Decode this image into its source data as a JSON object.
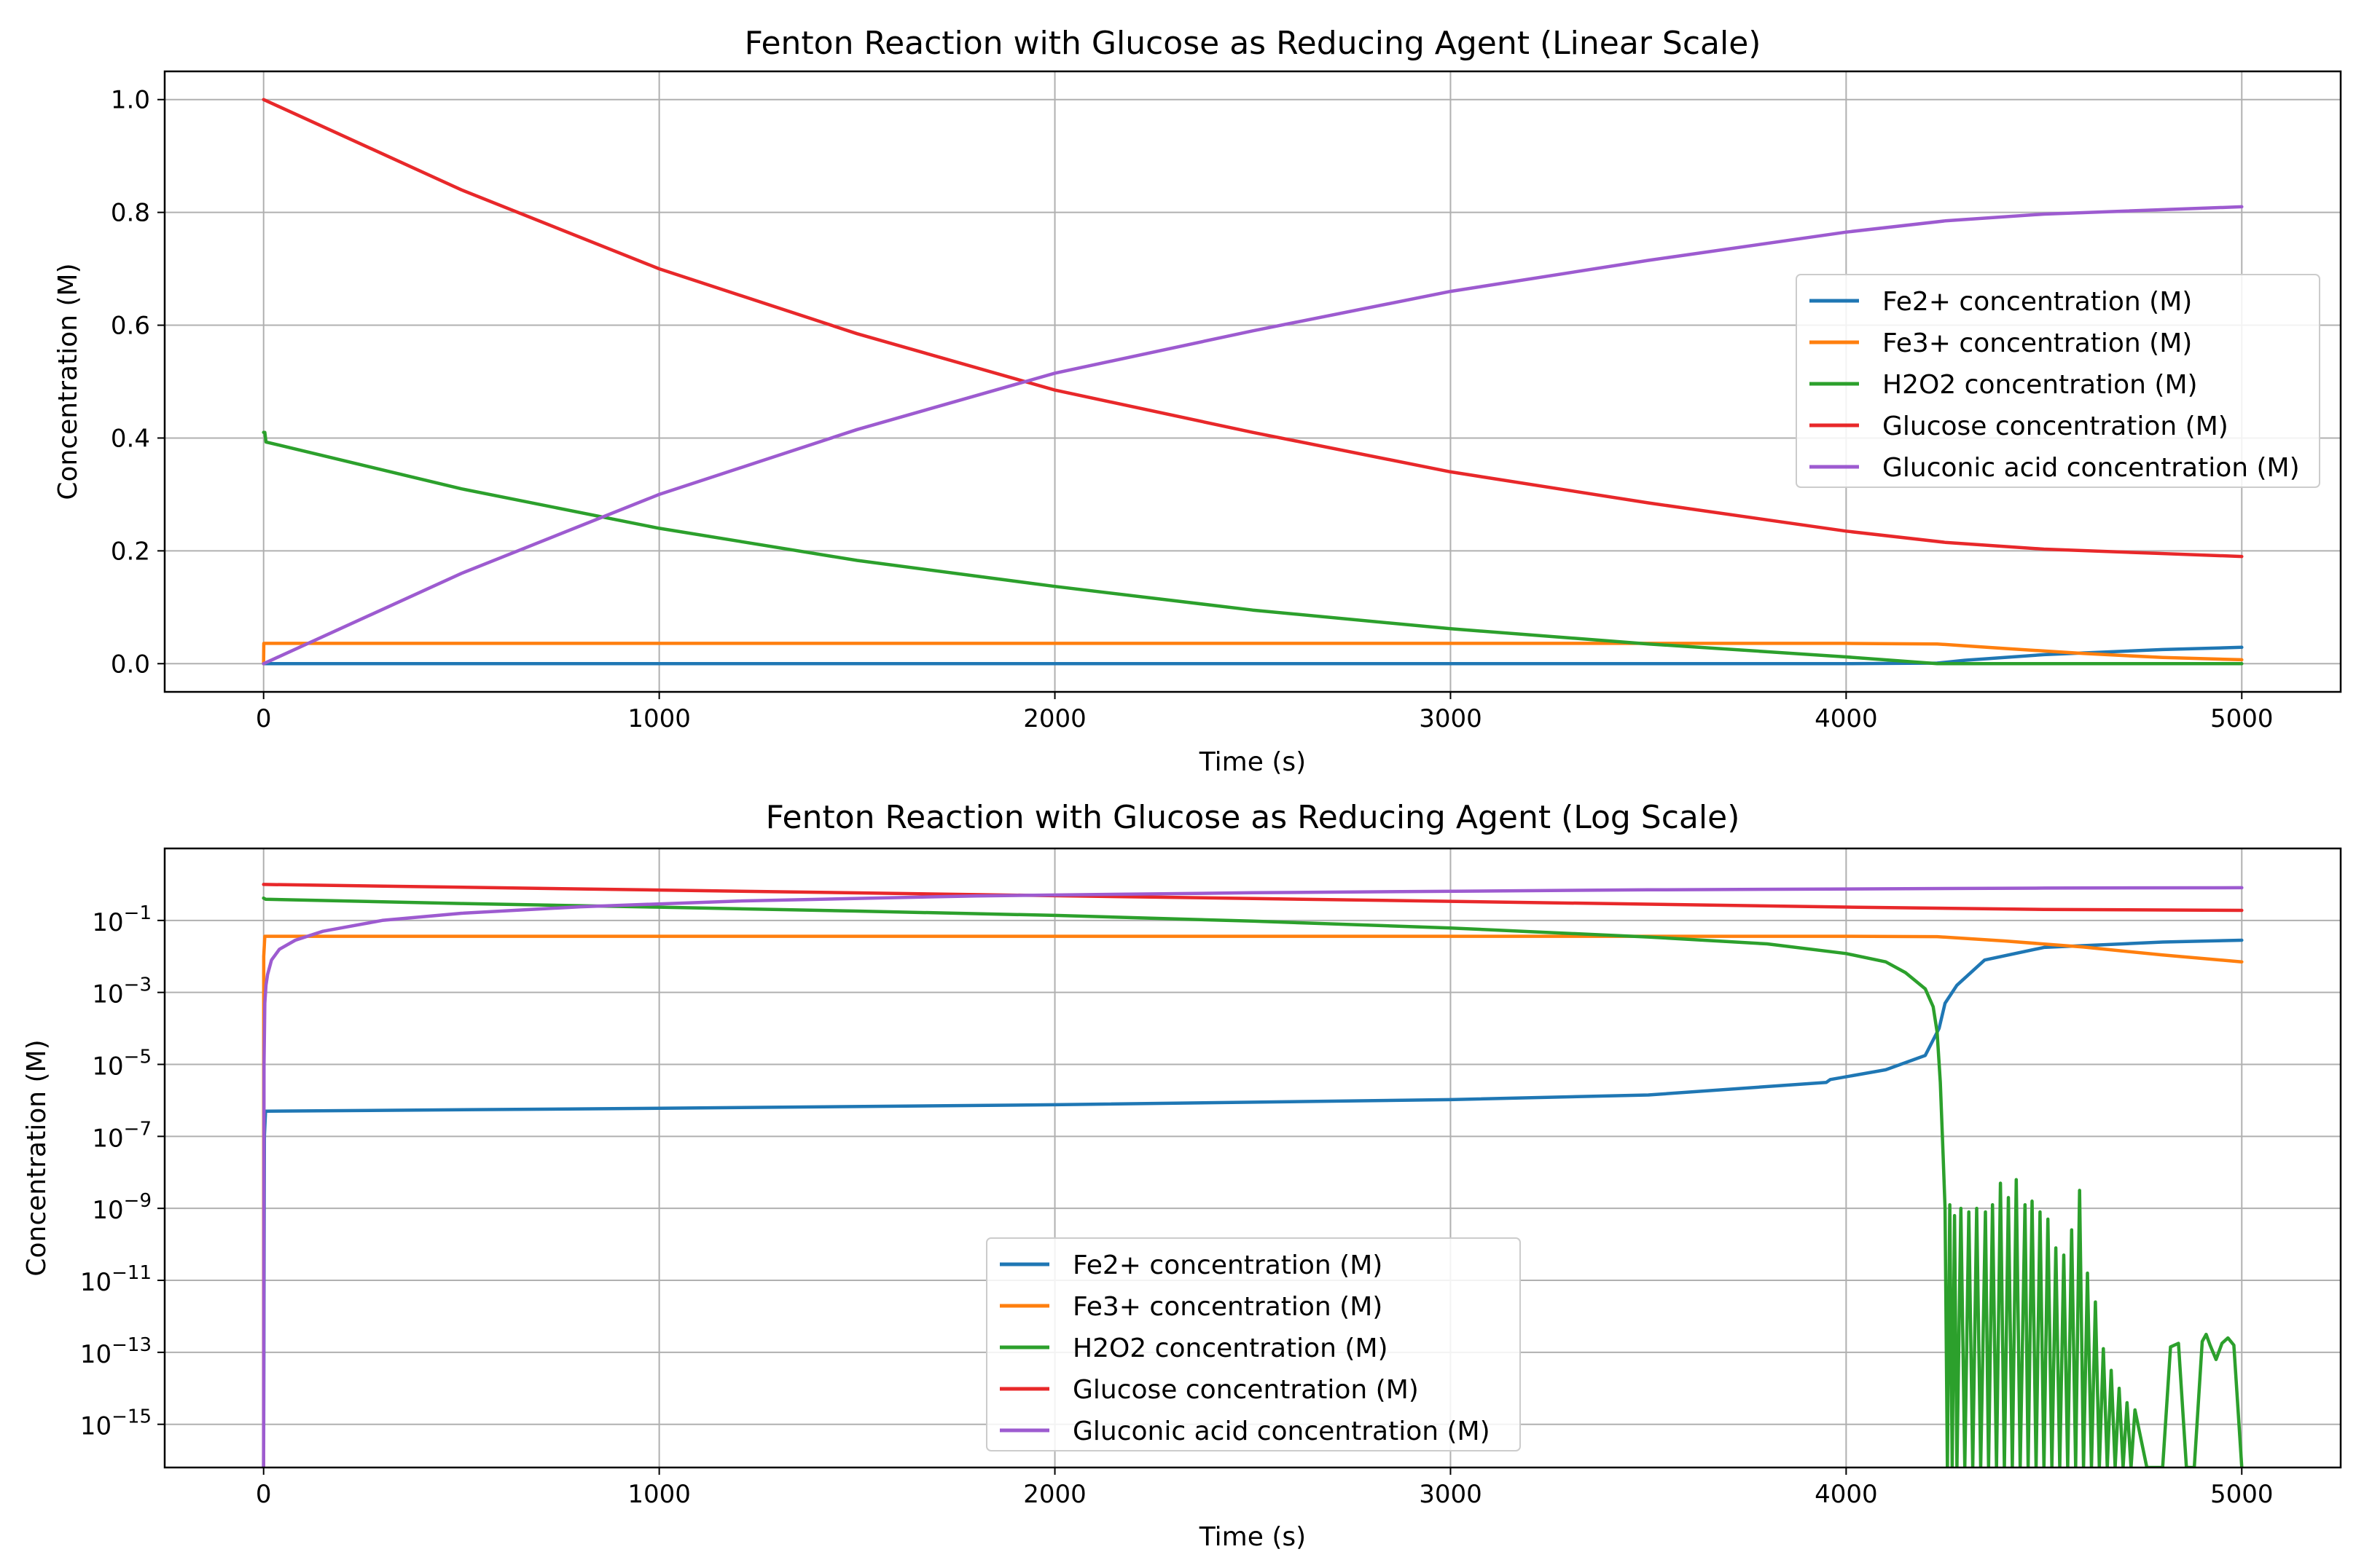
{
  "chart_data": [
    {
      "type": "line",
      "scale": "linear",
      "title": "Fenton Reaction with Glucose as Reducing Agent (Linear Scale)",
      "xlabel": "Time (s)",
      "ylabel": "Concentration (M)",
      "xlim": [
        -250,
        5250
      ],
      "ylim": [
        -0.05,
        1.05
      ],
      "xticks": [
        0,
        1000,
        2000,
        3000,
        4000,
        5000
      ],
      "xtick_labels": [
        "0",
        "1000",
        "2000",
        "3000",
        "4000",
        "5000"
      ],
      "yticks": [
        0.0,
        0.2,
        0.4,
        0.6,
        0.8,
        1.0
      ],
      "ytick_labels": [
        "0.0",
        "0.2",
        "0.4",
        "0.6",
        "0.8",
        "1.0"
      ],
      "grid": true,
      "legend_position": "center-right",
      "series": [
        {
          "name": "Fe2+ concentration (M)",
          "color": "#1f77b4",
          "x": [
            0,
            1000,
            2000,
            3000,
            4000,
            4230,
            4300,
            4500,
            4800,
            5000
          ],
          "y": [
            0.0,
            0.0,
            0.0,
            0.0,
            0.0,
            0.001,
            0.006,
            0.016,
            0.025,
            0.029
          ]
        },
        {
          "name": "Fe3+ concentration (M)",
          "color": "#ff7f0e",
          "x": [
            0,
            0.5,
            1000,
            2000,
            3000,
            4000,
            4230,
            4400,
            4600,
            4800,
            5000
          ],
          "y": [
            0.0,
            0.036,
            0.036,
            0.036,
            0.036,
            0.036,
            0.035,
            0.027,
            0.018,
            0.011,
            0.007
          ]
        },
        {
          "name": "H2O2 concentration (M)",
          "color": "#2ca02c",
          "x": [
            0,
            3,
            6,
            500,
            1000,
            1500,
            2000,
            2500,
            3000,
            3500,
            4000,
            4230,
            4500,
            5000
          ],
          "y": [
            0.41,
            0.41,
            0.393,
            0.31,
            0.24,
            0.183,
            0.137,
            0.095,
            0.062,
            0.035,
            0.012,
            0.0,
            0.0,
            0.0
          ]
        },
        {
          "name": "Glucose concentration (M)",
          "color": "#e8282a",
          "x": [
            0,
            500,
            1000,
            1500,
            2000,
            2500,
            3000,
            3500,
            4000,
            4250,
            4500,
            5000
          ],
          "y": [
            1.0,
            0.84,
            0.7,
            0.585,
            0.485,
            0.41,
            0.34,
            0.285,
            0.235,
            0.215,
            0.203,
            0.19
          ]
        },
        {
          "name": "Gluconic acid concentration (M)",
          "color": "#9d5bd0",
          "x": [
            0,
            500,
            1000,
            1500,
            2000,
            2500,
            3000,
            3500,
            4000,
            4250,
            4500,
            5000
          ],
          "y": [
            0.0,
            0.16,
            0.3,
            0.415,
            0.515,
            0.59,
            0.66,
            0.715,
            0.765,
            0.785,
            0.797,
            0.81
          ]
        }
      ]
    },
    {
      "type": "line",
      "scale": "log",
      "title": "Fenton Reaction with Glucose as Reducing Agent (Log Scale)",
      "xlabel": "Time (s)",
      "ylabel": "Concentration (M)",
      "xlim": [
        -250,
        5250
      ],
      "ylim_exponent": [
        -16.2,
        1.0
      ],
      "xticks": [
        0,
        1000,
        2000,
        3000,
        4000,
        5000
      ],
      "xtick_labels": [
        "0",
        "1000",
        "2000",
        "3000",
        "4000",
        "5000"
      ],
      "ytick_exponents": [
        -1,
        -3,
        -5,
        -7,
        -9,
        -11,
        -13,
        -15
      ],
      "ytick_labels": [
        "10",
        "10",
        "10",
        "10",
        "10",
        "10",
        "10",
        "10"
      ],
      "ytick_superscripts": [
        "−1",
        "−3",
        "−5",
        "−7",
        "−9",
        "−11",
        "−13",
        "−15"
      ],
      "grid": true,
      "legend_position": "lower-center",
      "series": [
        {
          "name": "Fe2+ concentration (M)",
          "color": "#1f77b4",
          "x": [
            0,
            2,
            5,
            1000,
            2000,
            3000,
            3500,
            3950,
            3960,
            4100,
            4200,
            4235,
            4250,
            4280,
            4350,
            4500,
            4800,
            5000
          ],
          "logy": [
            -16.2,
            -7,
            -6.3,
            -6.22,
            -6.12,
            -5.98,
            -5.85,
            -5.5,
            -5.42,
            -5.15,
            -4.75,
            -4.0,
            -3.3,
            -2.8,
            -2.1,
            -1.75,
            -1.6,
            -1.55
          ]
        },
        {
          "name": "Fe3+ concentration (M)",
          "color": "#ff7f0e",
          "x": [
            0,
            0.3,
            3,
            1000,
            2000,
            3000,
            4000,
            4230,
            4400,
            4600,
            4800,
            5000
          ],
          "logy": [
            -16.2,
            -2.0,
            -1.44,
            -1.44,
            -1.44,
            -1.44,
            -1.44,
            -1.45,
            -1.57,
            -1.74,
            -1.96,
            -2.15
          ]
        },
        {
          "name": "H2O2 concentration (M)",
          "color": "#2ca02c",
          "x": [
            0,
            5,
            500,
            1000,
            1500,
            2000,
            2500,
            3000,
            3500,
            3800,
            4000,
            4100,
            4150,
            4200,
            4220,
            4230,
            4238,
            4245,
            4250,
            4256,
            4262,
            4268,
            4274,
            4280,
            4290,
            4300,
            4310,
            4320,
            4330,
            4340,
            4352,
            4360,
            4370,
            4380,
            4390,
            4400,
            4410,
            4420,
            4430,
            4440,
            4452,
            4460,
            4470,
            4480,
            4490,
            4500,
            4510,
            4520,
            4530,
            4540,
            4550,
            4560,
            4570,
            4580,
            4590,
            4600,
            4610,
            4620,
            4630,
            4640,
            4650,
            4660,
            4670,
            4680,
            4690,
            4700,
            4710,
            4720,
            4730,
            4760,
            4780,
            4800,
            4820,
            4840,
            4860,
            4880,
            4900,
            4910,
            4920,
            4935,
            4950,
            4965,
            4980,
            5000
          ],
          "logy": [
            -0.38,
            -0.41,
            -0.53,
            -0.63,
            -0.74,
            -0.86,
            -1.02,
            -1.21,
            -1.46,
            -1.65,
            -1.92,
            -2.15,
            -2.45,
            -2.9,
            -3.4,
            -4.1,
            -5.5,
            -7.5,
            -9.0,
            -16.2,
            -8.9,
            -16.2,
            -9.2,
            -16.2,
            -9.0,
            -16.2,
            -9.1,
            -16.2,
            -9.0,
            -16.2,
            -9.1,
            -16.2,
            -8.9,
            -16.2,
            -8.3,
            -16.2,
            -8.7,
            -16.2,
            -8.2,
            -16.2,
            -8.9,
            -16.2,
            -8.8,
            -16.2,
            -9.1,
            -16.2,
            -9.3,
            -16.2,
            -10.1,
            -16.2,
            -10.3,
            -16.2,
            -9.6,
            -16.2,
            -8.5,
            -16.2,
            -10.8,
            -16.2,
            -11.6,
            -16.2,
            -12.9,
            -16.2,
            -13.5,
            -16.2,
            -14.0,
            -16.2,
            -14.4,
            -16.2,
            -14.6,
            -16.2,
            -16.2,
            -16.2,
            -12.85,
            -12.75,
            -16.2,
            -16.2,
            -12.7,
            -12.5,
            -12.8,
            -13.2,
            -12.75,
            -12.6,
            -12.8,
            -16.2
          ]
        },
        {
          "name": "Glucose concentration (M)",
          "color": "#e8282a",
          "x": [
            0,
            1000,
            2000,
            3000,
            4000,
            4500,
            5000
          ],
          "logy": [
            0.0,
            -0.155,
            -0.314,
            -0.469,
            -0.629,
            -0.693,
            -0.721
          ]
        },
        {
          "name": "Gluconic acid concentration (M)",
          "color": "#9d5bd0",
          "x": [
            0,
            1,
            3,
            6,
            10,
            20,
            40,
            80,
            150,
            300,
            500,
            800,
            1200,
            1800,
            2500,
            3500,
            4500,
            5000
          ],
          "logy": [
            -16.2,
            -5.0,
            -3.3,
            -2.8,
            -2.5,
            -2.1,
            -1.8,
            -1.55,
            -1.3,
            -1.0,
            -0.8,
            -0.62,
            -0.46,
            -0.32,
            -0.23,
            -0.15,
            -0.1,
            -0.09
          ]
        }
      ]
    }
  ]
}
